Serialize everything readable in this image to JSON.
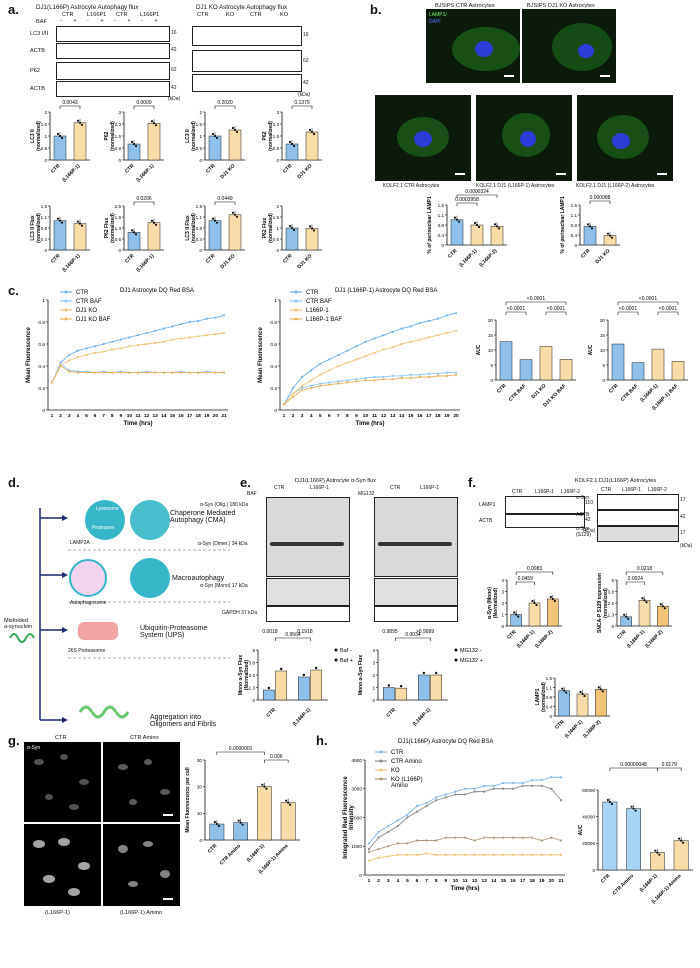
{
  "panel_labels": [
    "a.",
    "b.",
    "c.",
    "d.",
    "e.",
    "f.",
    "g.",
    "h."
  ],
  "panel_a": {
    "title_left": "DJ1(L166P) Astrocyte Autophagy flux",
    "title_right": "DJ1 KO Astrocyte Autophagy flux",
    "row_labels_left": [
      "LC3 I/II",
      "ACTB",
      "P62",
      "ACTB"
    ],
    "row_labels_right_head": [
      "CTR",
      "KO",
      "CTR",
      "KO"
    ],
    "header_left": [
      "CTR",
      "L166P1",
      "CTR",
      "L166P1"
    ],
    "baf_label": "BAF",
    "baf_signs": [
      "-",
      "+",
      "-",
      "+",
      "-",
      "+",
      "-",
      "+"
    ],
    "mw_left": [
      "16",
      "42",
      "62",
      "42"
    ],
    "mw_right": [
      "16",
      "62",
      "42"
    ],
    "kda": "(kDa)",
    "pvals_row1": [
      "0.0043",
      "0.0009",
      "0.2020",
      "0.1379"
    ],
    "pvals_row2": [
      "0.0206",
      "0.0449"
    ],
    "ylabels_row1": [
      "LC3 II\n(normalized)",
      "P62\n(normalized)",
      "LC3 II\n(normalized)",
      "P62\n(normalized)"
    ],
    "ylabels_row2": [
      "LC3 II Flux\n(normalized)",
      "P62 Flux\n(normalized)",
      "LC3 II Flux\n(normalized)",
      "P62 Flux\n(normalized)"
    ],
    "xcats_l": [
      "CTR",
      "(L166P-1)"
    ],
    "xcats_r": [
      "CTR",
      "DJ1 KO"
    ]
  },
  "panel_b": {
    "top_titles": [
      "BJSIPS CTR Astrocytes",
      "BJSIPS DJ1 KO Astrocytes"
    ],
    "stain_label": "LAMP1/",
    "stain_label2": "DAPI",
    "bottom_titles": [
      "KOLF2.1 CTR Astrocytes",
      "KOLF2.1 DJ1 (L166P-1) Astrocytes",
      "KOLF2.1 DJ1 (L166P-2) Astrocytes"
    ],
    "pvals_left": [
      "0.0000324",
      "0.0003958"
    ],
    "pvals_right": [
      "0.000088"
    ],
    "ylabel": "% of perinuclear LAMP1",
    "xcats_left": [
      "CTR",
      "(L166P-1)",
      "(L166P-2)"
    ],
    "xcats_right": [
      "CTR",
      "DJ1 KO"
    ]
  },
  "panel_c": {
    "title1": "DJ1 Astrocyte DQ Red BSA",
    "title2": "DJ1 (L166P-1) Astrocyte DQ Red BSA",
    "legend1": [
      "CTR",
      "CTR BAF",
      "DJ1 KO",
      "DJ1 KO BAF"
    ],
    "legend2": [
      "CTR",
      "CTR BAF",
      "L166P-1",
      "L166P-1 BAF"
    ],
    "ylabel": "Mean Fluorescence",
    "xlabel": "Time (hrs)",
    "auc_label": "AUC",
    "auc_p": "<0.0001",
    "auc_cats1": [
      "CTR",
      "CTR BAF",
      "DJ1 KO",
      "DJ1 KO BAF"
    ],
    "auc_cats2": [
      "CTR",
      "CTR BAF",
      "(L166P-1)",
      "(L166P-1) BAF"
    ]
  },
  "panel_d": {
    "lysosome": "Lysosome",
    "proteases": "Proteases",
    "lamp2a": "LAMP2A",
    "cma": "Chaperone Mediated\nAutophagy (CMA)",
    "macro": "Macroautophagy",
    "autophagosome": "Autophagosome",
    "ups": "Ubiquitin-Proteasome\nSystem (UPS)",
    "proteasome": "26S Proteasome",
    "aggregation": "Aggregation into\nOligomers and Fibrils",
    "misfolded": "Misfolded\na-synuclein"
  },
  "panel_e": {
    "title": "DJ1(L166P) Astrocyte α-Syn flux",
    "header": [
      "CTR",
      "L166P-1",
      "CTR",
      "L166P-1"
    ],
    "baf": "BAF",
    "mg132": "MG132",
    "bands": [
      "α-Syn (Olig.) 180 kDa",
      "α-Syn (Dimer.) 34 kDa",
      "α-Syn (Mono) 17 kDa",
      "GAPDH 37 kDa"
    ],
    "pvals_left": [
      "0.9564",
      "0.0018",
      "0.1918"
    ],
    "pvals_right": [
      "0.0034",
      "0.9895",
      ">0.9999"
    ],
    "ylabel_left": "Mono α-Syn Flux\n(Normalized)",
    "ylabel_right": "Mono α-Syn Flux",
    "legend_left": [
      "Baf -",
      "Baf +"
    ],
    "legend_right": [
      "MG132 -",
      "MG132 +"
    ],
    "xcats": [
      "CTR",
      "(L166P-1)"
    ]
  },
  "panel_f": {
    "title": "KOLF2.1 DJ1(L166P) Astrocytes",
    "header": [
      "CTR",
      "L166P-1",
      "L166P-2"
    ],
    "bands_left": [
      "LAMP1",
      "ACTB"
    ],
    "bands_right": [
      "α-Syn",
      "ACTB",
      "α-Syn\n(S129)"
    ],
    "mw_left": [
      "110",
      "42"
    ],
    "mw_right": [
      "17",
      "42",
      "17"
    ],
    "pvals_a": [
      "0.0083",
      "0.0459"
    ],
    "pvals_b": [
      "0.0218",
      "0.0024"
    ],
    "ylabel_a": "α-Syn (Mono)\n(Normalized)",
    "ylabel_b": "SNCA-P S129 expression\n(normalized)",
    "ylabel_c": "LAMP1\n(normalized)",
    "xcats": [
      "CTR",
      "(L166P-1)",
      "(L166P-2)"
    ]
  },
  "panel_g": {
    "top": [
      "CTR",
      "CTR Amino"
    ],
    "bottom": [
      "(L166P-1)",
      "(L166P-1) Amino"
    ],
    "stain": "α-Syn",
    "pvals": [
      "0.0000001",
      "0.006"
    ],
    "ylabel": "Mean Fluorescence per cell",
    "xcats": [
      "CTR",
      "CTR Amino",
      "(L166P-1)",
      "(L166P-1) Amino"
    ]
  },
  "panel_h": {
    "title": "DJ1(L166P) Astrocyte DQ Red BSA",
    "legend": [
      "CTR",
      "CTR Amino",
      "KO",
      "KO (L166P)\nAmino"
    ],
    "ylabel": "Integrated Red Fluorescence\nIntensity",
    "xlabel": "Time (hrs)",
    "pvals": [
      "0.00000048",
      "0.0179"
    ],
    "auc_label": "AUC",
    "xcats": [
      "CTR",
      "CTR Amino",
      "(L166P-1)",
      "(L166P-1) Amino"
    ]
  },
  "colors": {
    "blue": "#8ec0ea",
    "peach": "#f8dca8",
    "orange": "#f2c477",
    "lightblue": "#a8d3f2"
  },
  "chart_data": [
    {
      "type": "bar",
      "id": "a_lc3_l166p",
      "categories": [
        "CTR",
        "(L166P-1)"
      ],
      "values": [
        1.0,
        1.55
      ],
      "ylim": [
        0,
        2.0
      ]
    },
    {
      "type": "bar",
      "id": "a_p62_l166p",
      "categories": [
        "CTR",
        "(L166P-1)"
      ],
      "values": [
        1.0,
        2.3
      ],
      "ylim": [
        0,
        3
      ]
    },
    {
      "type": "bar",
      "id": "a_lc3_ko",
      "categories": [
        "CTR",
        "DJ1 KO"
      ],
      "values": [
        1.0,
        1.25
      ],
      "ylim": [
        0,
        2.0
      ]
    },
    {
      "type": "bar",
      "id": "a_p62_ko",
      "categories": [
        "CTR",
        "DJ1 KO"
      ],
      "values": [
        1.0,
        1.75
      ],
      "ylim": [
        0,
        3
      ]
    },
    {
      "type": "bar",
      "id": "a_lc3flux_l166p",
      "categories": [
        "CTR",
        "(L166P-1)"
      ],
      "values": [
        1.0,
        0.9
      ],
      "ylim": [
        0,
        1.5
      ]
    },
    {
      "type": "bar",
      "id": "a_p62flux_l166p",
      "categories": [
        "CTR",
        "(L166P-1)"
      ],
      "values": [
        1.0,
        1.55
      ],
      "ylim": [
        0,
        2.5
      ]
    },
    {
      "type": "bar",
      "id": "a_lc3flux_ko",
      "categories": [
        "CTR",
        "DJ1 KO"
      ],
      "values": [
        1.0,
        1.2
      ],
      "ylim": [
        0,
        1.5
      ]
    },
    {
      "type": "bar",
      "id": "a_p62flux_ko",
      "categories": [
        "CTR",
        "DJ1 KO"
      ],
      "values": [
        1.0,
        0.98
      ],
      "ylim": [
        0,
        2.0
      ]
    },
    {
      "type": "line",
      "id": "c_line1",
      "x": [
        1,
        2,
        3,
        4,
        5,
        6,
        7,
        8,
        9,
        10,
        11,
        12,
        13,
        14,
        15,
        16,
        17,
        18,
        19,
        20,
        21
      ],
      "series": [
        {
          "name": "CTR",
          "values": [
            0.25,
            0.43,
            0.5,
            0.54,
            0.56,
            0.58,
            0.6,
            0.62,
            0.64,
            0.66,
            0.68,
            0.7,
            0.72,
            0.74,
            0.76,
            0.78,
            0.8,
            0.81,
            0.83,
            0.84,
            0.86
          ]
        },
        {
          "name": "CTR BAF",
          "values": [
            0.25,
            0.42,
            0.36,
            0.35,
            0.35,
            0.34,
            0.35,
            0.34,
            0.35,
            0.34,
            0.34,
            0.35,
            0.34,
            0.34,
            0.34,
            0.35,
            0.34,
            0.34,
            0.35,
            0.34,
            0.34
          ]
        },
        {
          "name": "DJ1 KO",
          "values": [
            0.25,
            0.41,
            0.45,
            0.48,
            0.5,
            0.52,
            0.53,
            0.55,
            0.56,
            0.58,
            0.59,
            0.6,
            0.61,
            0.62,
            0.64,
            0.65,
            0.66,
            0.67,
            0.68,
            0.69,
            0.7
          ]
        },
        {
          "name": "DJ1 KO BAF",
          "values": [
            0.25,
            0.4,
            0.35,
            0.34,
            0.34,
            0.34,
            0.34,
            0.34,
            0.34,
            0.34,
            0.34,
            0.34,
            0.34,
            0.34,
            0.34,
            0.34,
            0.34,
            0.34,
            0.34,
            0.34,
            0.34
          ]
        }
      ],
      "xlabel": "Time (hrs)",
      "ylabel": "Mean Fluorescence",
      "ylim": [
        0,
        1.0
      ]
    },
    {
      "type": "line",
      "id": "c_line2",
      "x": [
        1,
        2,
        3,
        4,
        5,
        6,
        7,
        8,
        9,
        10,
        11,
        12,
        13,
        14,
        15,
        16,
        17,
        18,
        19,
        20
      ],
      "series": [
        {
          "name": "CTR",
          "values": [
            0.05,
            0.2,
            0.3,
            0.36,
            0.42,
            0.46,
            0.5,
            0.54,
            0.58,
            0.62,
            0.65,
            0.68,
            0.71,
            0.74,
            0.76,
            0.79,
            0.81,
            0.83,
            0.86,
            0.88
          ]
        },
        {
          "name": "CTR BAF",
          "values": [
            0.05,
            0.15,
            0.2,
            0.22,
            0.24,
            0.25,
            0.26,
            0.27,
            0.28,
            0.29,
            0.3,
            0.3,
            0.31,
            0.31,
            0.32,
            0.32,
            0.33,
            0.33,
            0.34,
            0.34
          ]
        },
        {
          "name": "L166P-1",
          "values": [
            0.05,
            0.15,
            0.22,
            0.27,
            0.32,
            0.36,
            0.4,
            0.43,
            0.46,
            0.49,
            0.52,
            0.55,
            0.57,
            0.6,
            0.62,
            0.64,
            0.66,
            0.68,
            0.7,
            0.72
          ]
        },
        {
          "name": "L166P-1 BAF",
          "values": [
            0.05,
            0.12,
            0.18,
            0.2,
            0.22,
            0.23,
            0.24,
            0.25,
            0.26,
            0.27,
            0.27,
            0.28,
            0.28,
            0.29,
            0.29,
            0.3,
            0.3,
            0.31,
            0.31,
            0.32
          ]
        }
      ],
      "xlabel": "Time (hrs)",
      "ylabel": "Mean Fluorescence",
      "ylim": [
        0,
        1.0
      ]
    },
    {
      "type": "bar",
      "id": "c_auc1",
      "categories": [
        "CTR",
        "CTR BAF",
        "DJ1 KO",
        "DJ1 KO BAF"
      ],
      "values": [
        12.8,
        6.8,
        11.2,
        6.9
      ],
      "ylim": [
        0,
        20
      ]
    },
    {
      "type": "bar",
      "id": "c_auc2",
      "categories": [
        "CTR",
        "CTR BAF",
        "(L166P-1)",
        "(L166P-1) BAF"
      ],
      "values": [
        12.0,
        5.8,
        10.3,
        6.2
      ],
      "ylim": [
        0,
        20
      ]
    },
    {
      "type": "bar",
      "id": "e_left",
      "categories": [
        "CTR",
        "(L166P-1)"
      ],
      "series": [
        {
          "name": "Baf -",
          "values": [
            1.0,
            2.3
          ]
        },
        {
          "name": "Baf +",
          "values": [
            2.9,
            3.0
          ]
        }
      ],
      "ylim": [
        0,
        5
      ]
    },
    {
      "type": "bar",
      "id": "e_right",
      "categories": [
        "CTR",
        "(L166P-1)"
      ],
      "series": [
        {
          "name": "MG132 -",
          "values": [
            1.0,
            2.0
          ]
        },
        {
          "name": "MG132 +",
          "values": [
            0.95,
            2.0
          ]
        }
      ],
      "ylim": [
        0,
        4
      ]
    },
    {
      "type": "bar",
      "id": "f_syn",
      "categories": [
        "CTR",
        "(L166P-1)",
        "(L166P-2)"
      ],
      "values": [
        1.0,
        2.0,
        2.35
      ],
      "ylim": [
        0,
        4
      ]
    },
    {
      "type": "bar",
      "id": "f_s129",
      "categories": [
        "CTR",
        "(L166P-1)",
        "(L166P-2)"
      ],
      "values": [
        1.0,
        2.8,
        2.15
      ],
      "ylim": [
        0,
        5
      ]
    },
    {
      "type": "bar",
      "id": "f_lamp1",
      "categories": [
        "CTR",
        "(L166P-1)",
        "(L166P-2)"
      ],
      "values": [
        1.0,
        0.87,
        1.05
      ],
      "ylim": [
        0,
        1.5
      ]
    },
    {
      "type": "bar",
      "id": "b_left",
      "categories": [
        "CTR",
        "(L166P-1)",
        "(L166P-2)"
      ],
      "values": [
        0.95,
        0.75,
        0.7
      ],
      "ylim": [
        0,
        1.5
      ]
    },
    {
      "type": "bar",
      "id": "b_right",
      "categories": [
        "CTR",
        "DJ1 KO"
      ],
      "values": [
        0.7,
        0.35
      ],
      "ylim": [
        0,
        1.5
      ]
    },
    {
      "type": "bar",
      "id": "g_bar",
      "categories": [
        "CTR",
        "CTR Amino",
        "(L166P-1)",
        "(L166P-1) Amino"
      ],
      "values": [
        6,
        6.5,
        20,
        14
      ],
      "ylim": [
        0,
        30
      ]
    },
    {
      "type": "bar",
      "id": "h_auc",
      "categories": [
        "CTR",
        "CTR Amino",
        "(L166P-1)",
        "(L166P-1) Amino"
      ],
      "values": [
        51000,
        46000,
        13000,
        22000
      ],
      "ylim": [
        0,
        60000
      ]
    },
    {
      "type": "line",
      "id": "h_line",
      "x": [
        1,
        2,
        3,
        4,
        5,
        6,
        7,
        8,
        9,
        10,
        11,
        12,
        13,
        14,
        15,
        16,
        17,
        18,
        19,
        20,
        21
      ],
      "series": [
        {
          "name": "CTR",
          "values": [
            1100,
            1500,
            1700,
            1900,
            2100,
            2400,
            2500,
            2700,
            2800,
            2900,
            3000,
            3000,
            3100,
            3100,
            3200,
            3200,
            3200,
            3300,
            3300,
            3400,
            3400
          ]
        },
        {
          "name": "CTR Amino",
          "values": [
            900,
            1300,
            1500,
            1700,
            2000,
            2200,
            2400,
            2600,
            2700,
            2800,
            2800,
            2900,
            2900,
            3000,
            3000,
            3000,
            3100,
            3100,
            3100,
            3000,
            2600
          ]
        },
        {
          "name": "KO",
          "values": [
            500,
            600,
            650,
            700,
            700,
            700,
            750,
            700,
            700,
            700,
            700,
            700,
            700,
            700,
            700,
            700,
            700,
            700,
            700,
            700,
            700
          ]
        },
        {
          "name": "KO (L166P) Amino",
          "values": [
            800,
            900,
            1000,
            1100,
            1100,
            1200,
            1200,
            1200,
            1300,
            1300,
            1300,
            1200,
            1300,
            1300,
            1300,
            1300,
            1300,
            1300,
            1200,
            1300,
            1200
          ]
        }
      ],
      "xlabel": "Time (hrs)",
      "ylim": [
        0,
        4000
      ]
    }
  ]
}
